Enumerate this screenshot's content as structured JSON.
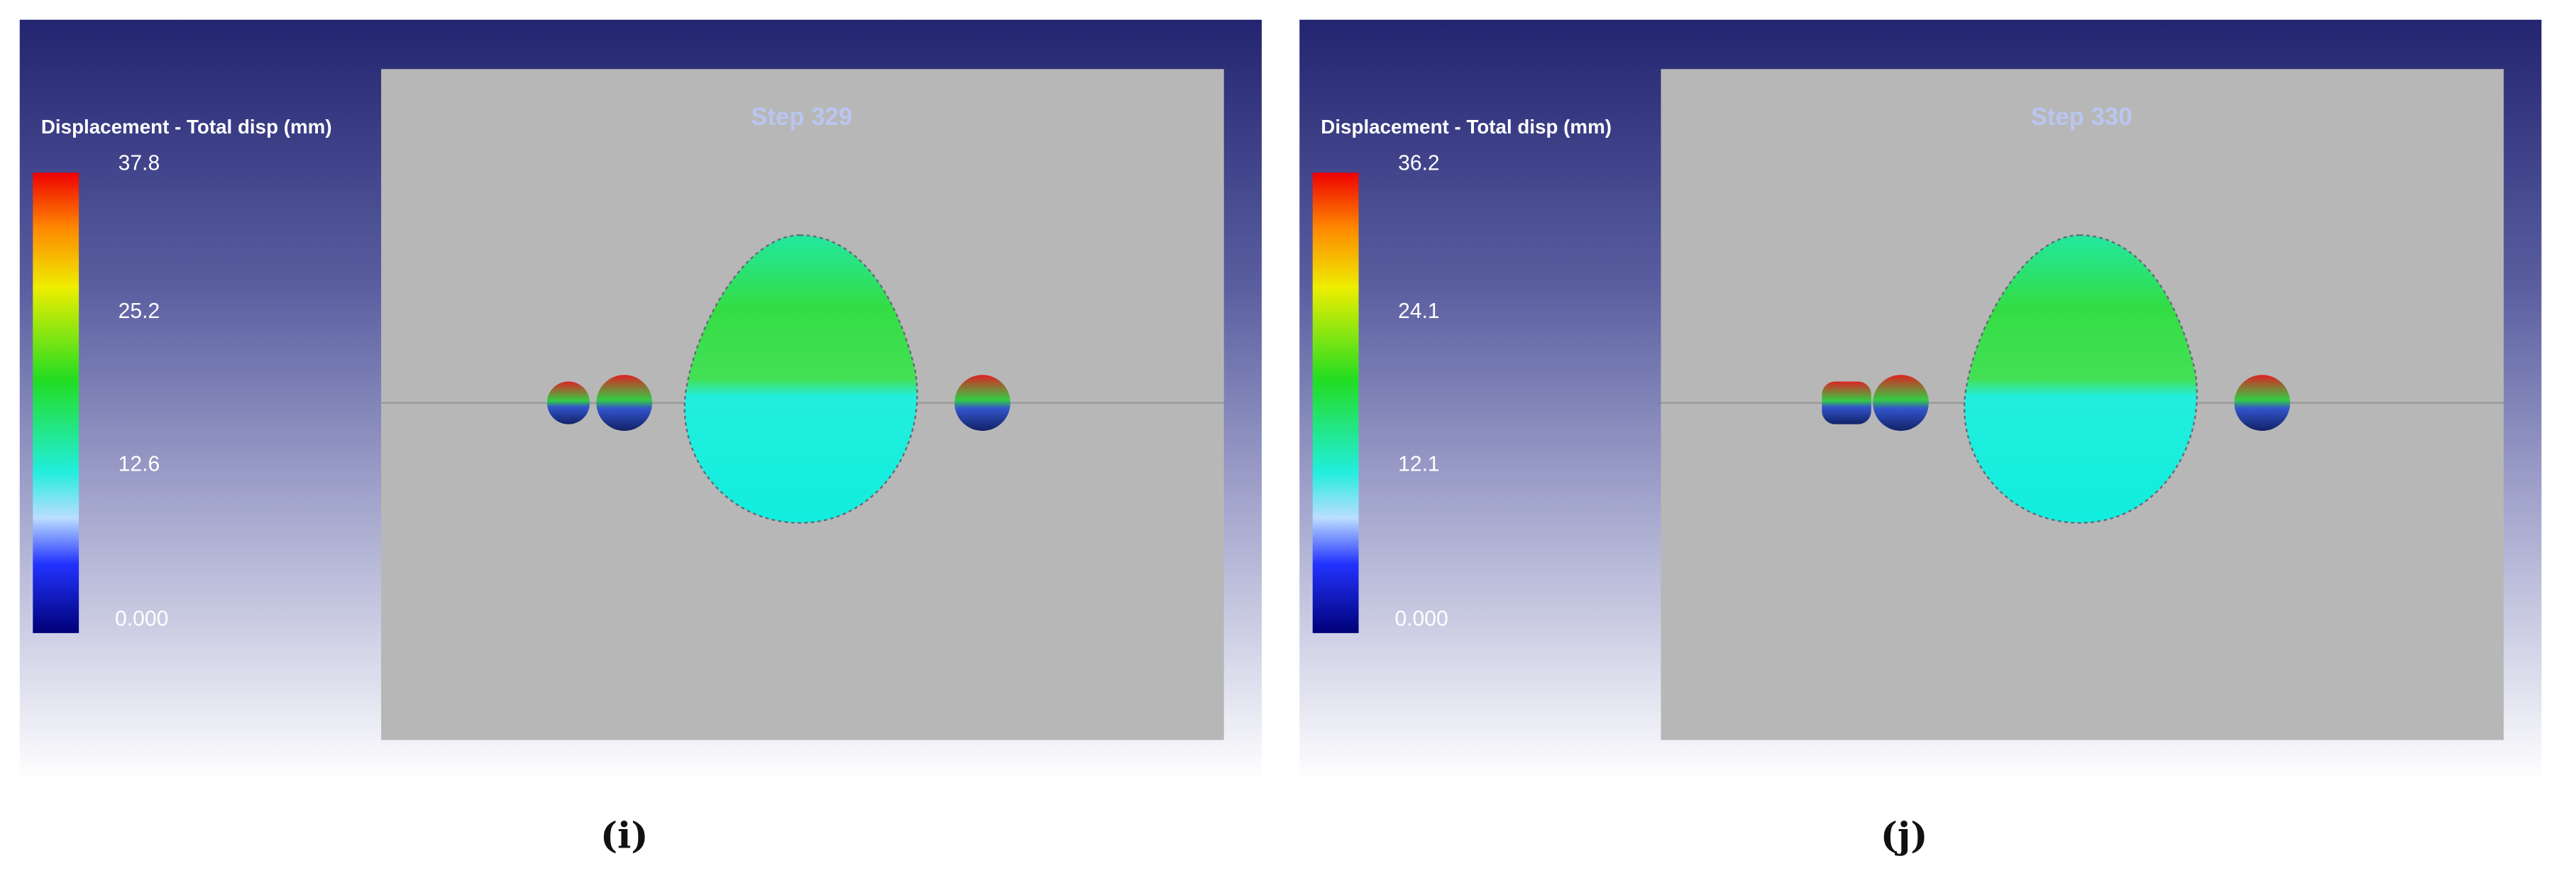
{
  "panels": [
    {
      "legend_title": "Displacement - Total disp (mm)",
      "step": "Step  329",
      "colorbar_labels": [
        "37.8",
        "25.2",
        "12.6",
        "0.000"
      ],
      "caption": "(i)"
    },
    {
      "legend_title": "Displacement - Total disp (mm)",
      "step": "Step  330",
      "colorbar_labels": [
        "36.2",
        "24.1",
        "12.1",
        "0.000"
      ],
      "caption": "(j)"
    }
  ]
}
